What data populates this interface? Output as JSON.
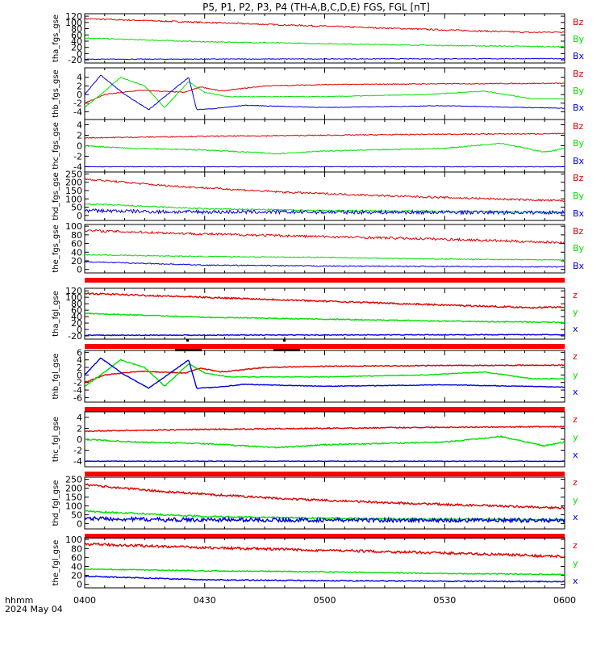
{
  "title": "P5, P1, P2, P3, P4 (TH-A,B,C,D,E) FGS, FGL [nT]",
  "x_axis": {
    "tick_labels": [
      "0400",
      "0430",
      "0500",
      "0530",
      "0600"
    ],
    "corner_label": "hhmm",
    "date_label": "2024 May 04"
  },
  "colors": {
    "z": "#e00000",
    "y": "#00e000",
    "x": "#0000e0",
    "bar": "#ff0000",
    "axis": "#000000"
  },
  "chart_data": [
    {
      "type": "line",
      "ylabel": "tha_fgs_gse",
      "yticks": [
        -20,
        0,
        20,
        40,
        60,
        80,
        100,
        120
      ],
      "ylim": [
        -30,
        128
      ],
      "bar_below": false,
      "series": [
        {
          "name": "Bz",
          "color": "#e00000",
          "noise": 0.6,
          "x": [
            0,
            30,
            60,
            90,
            112,
            120
          ],
          "values": [
            112,
            100,
            88,
            76,
            68,
            70
          ]
        },
        {
          "name": "By",
          "color": "#00e000",
          "noise": 0.4,
          "x": [
            0,
            30,
            60,
            90,
            120
          ],
          "values": [
            50,
            38,
            32,
            26,
            22
          ]
        },
        {
          "name": "Bx",
          "color": "#0000e0",
          "noise": 0.3,
          "x": [
            0,
            60,
            120
          ],
          "values": [
            -18,
            -17,
            -16
          ]
        }
      ]
    },
    {
      "type": "line",
      "ylabel": "thb_fgs_gse",
      "yticks": [
        -4,
        -2,
        0,
        2,
        4
      ],
      "ylim": [
        -5.8,
        6.2
      ],
      "bar_below": false,
      "series": [
        {
          "name": "Bz",
          "color": "#e00000",
          "noise": 0.35,
          "x": [
            0,
            5,
            14,
            25,
            29,
            34,
            45,
            60,
            90,
            120
          ],
          "values": [
            -2,
            0,
            1,
            0.5,
            1.8,
            0.8,
            2,
            2.3,
            2.5,
            2.6
          ]
        },
        {
          "name": "By",
          "color": "#00e000",
          "noise": 0.3,
          "x": [
            0,
            4,
            9,
            15,
            20,
            26,
            30,
            36,
            50,
            60,
            85,
            100,
            112,
            120
          ],
          "values": [
            -3,
            0,
            4,
            2,
            -3,
            3,
            0.5,
            -0.5,
            -0.5,
            -0.5,
            0,
            0.8,
            -1,
            -1
          ]
        },
        {
          "name": "Bx",
          "color": "#0000e0",
          "noise": 0.25,
          "x": [
            0,
            4,
            10,
            16,
            22,
            26,
            28,
            32,
            40,
            60,
            90,
            120
          ],
          "values": [
            0,
            4.5,
            0,
            -3.5,
            1,
            4,
            -3.5,
            -3.3,
            -2.5,
            -3,
            -2.6,
            -3.2
          ]
        }
      ]
    },
    {
      "type": "line",
      "ylabel": "thc_fgs_gse",
      "yticks": [
        -4,
        -2,
        0,
        2,
        4
      ],
      "ylim": [
        -5.0,
        5.0
      ],
      "bar_below": false,
      "series": [
        {
          "name": "Bz",
          "color": "#e00000",
          "noise": 0.4,
          "x": [
            0,
            30,
            60,
            90,
            120
          ],
          "values": [
            1.5,
            1.8,
            2,
            2.2,
            2.3
          ]
        },
        {
          "name": "By",
          "color": "#00e000",
          "noise": 0.45,
          "x": [
            0,
            12,
            30,
            48,
            60,
            90,
            104,
            115,
            120
          ],
          "values": [
            0,
            -0.5,
            -0.8,
            -1.5,
            -1,
            -0.5,
            0.5,
            -1.2,
            -0.5
          ]
        },
        {
          "name": "Bx",
          "color": "#0000e0",
          "noise": 0.2,
          "x": [
            0,
            60,
            120
          ],
          "values": [
            -4,
            -4,
            -4
          ]
        }
      ]
    },
    {
      "type": "line",
      "ylabel": "thd_fgs_gse",
      "yticks": [
        0,
        50,
        100,
        150,
        200,
        250
      ],
      "ylim": [
        -30,
        262
      ],
      "bar_below": false,
      "series": [
        {
          "name": "Bz",
          "color": "#e00000",
          "noise": 0.8,
          "x": [
            0,
            20,
            50,
            80,
            120
          ],
          "values": [
            220,
            180,
            140,
            115,
            88
          ]
        },
        {
          "name": "By",
          "color": "#00e000",
          "noise": 0.6,
          "x": [
            0,
            30,
            60,
            120
          ],
          "values": [
            70,
            40,
            30,
            20
          ]
        },
        {
          "name": "Bx",
          "color": "#0000e0",
          "noise": 1.5,
          "x": [
            0,
            20,
            60,
            120
          ],
          "values": [
            30,
            22,
            20,
            18
          ]
        }
      ]
    },
    {
      "type": "line",
      "ylabel": "the_fgs_gse",
      "yticks": [
        0,
        20,
        40,
        60,
        80,
        100
      ],
      "ylim": [
        -8,
        104
      ],
      "bar_below": true,
      "series": [
        {
          "name": "Bz",
          "color": "#e00000",
          "noise": 1.0,
          "x": [
            0,
            30,
            60,
            90,
            120
          ],
          "values": [
            90,
            82,
            76,
            70,
            62
          ]
        },
        {
          "name": "By",
          "color": "#00e000",
          "noise": 0.4,
          "x": [
            0,
            30,
            60,
            90,
            120
          ],
          "values": [
            34,
            30,
            28,
            24,
            22
          ]
        },
        {
          "name": "Bx",
          "color": "#0000e0",
          "noise": 0.4,
          "x": [
            0,
            30,
            60,
            120
          ],
          "values": [
            18,
            10,
            8,
            6
          ]
        }
      ]
    },
    {
      "type": "line",
      "ylabel": "tha_fgl_gse",
      "yticks": [
        -20,
        0,
        20,
        40,
        60,
        80,
        100,
        120
      ],
      "ylim": [
        -30,
        128
      ],
      "bar_below": true,
      "series": [
        {
          "name": "z",
          "color": "#e00000",
          "noise": 0.6,
          "x": [
            0,
            30,
            60,
            90,
            112,
            120
          ],
          "values": [
            112,
            100,
            88,
            76,
            68,
            70
          ]
        },
        {
          "name": "y",
          "color": "#00e000",
          "noise": 0.4,
          "x": [
            0,
            30,
            60,
            90,
            120
          ],
          "values": [
            50,
            38,
            32,
            26,
            22
          ]
        },
        {
          "name": "x",
          "color": "#0000e0",
          "noise": 0.3,
          "x": [
            0,
            60,
            120
          ],
          "values": [
            -18,
            -17,
            -16
          ]
        }
      ]
    },
    {
      "type": "line",
      "ylabel": "thb_fgl_gse",
      "yticks": [
        -6,
        -4,
        -2,
        0,
        2,
        4,
        6
      ],
      "ylim": [
        -7.2,
        6.5
      ],
      "bar_below": true,
      "series": [
        {
          "name": "z",
          "color": "#e00000",
          "noise": 0.35,
          "x": [
            0,
            5,
            14,
            25,
            29,
            34,
            45,
            60,
            90,
            120
          ],
          "values": [
            -2,
            0,
            1,
            0.5,
            1.8,
            0.8,
            2,
            2.3,
            2.5,
            2.6
          ]
        },
        {
          "name": "y",
          "color": "#00e000",
          "noise": 0.3,
          "x": [
            0,
            4,
            9,
            15,
            20,
            26,
            30,
            36,
            50,
            60,
            85,
            100,
            112,
            120
          ],
          "values": [
            -3,
            0,
            4,
            2,
            -3,
            3,
            0.5,
            -0.5,
            -0.5,
            -0.5,
            0,
            0.8,
            -1,
            -1
          ]
        },
        {
          "name": "x",
          "color": "#0000e0",
          "noise": 0.25,
          "x": [
            0,
            4,
            10,
            16,
            22,
            26,
            28,
            32,
            40,
            60,
            90,
            120
          ],
          "values": [
            0,
            4.5,
            0,
            -3.5,
            1,
            4,
            -3.5,
            -3.3,
            -2.5,
            -3,
            -2.6,
            -3.2
          ]
        }
      ]
    },
    {
      "type": "line",
      "ylabel": "thc_fgl_gse",
      "yticks": [
        -4,
        -2,
        0,
        2,
        4
      ],
      "ylim": [
        -5.0,
        5.0
      ],
      "bar_below": true,
      "series": [
        {
          "name": "z",
          "color": "#e00000",
          "noise": 0.4,
          "x": [
            0,
            30,
            60,
            90,
            120
          ],
          "values": [
            1.5,
            1.8,
            2,
            2.2,
            2.3
          ]
        },
        {
          "name": "y",
          "color": "#00e000",
          "noise": 0.45,
          "x": [
            0,
            12,
            30,
            48,
            60,
            90,
            104,
            115,
            120
          ],
          "values": [
            0,
            -0.5,
            -0.8,
            -1.5,
            -1,
            -0.5,
            0.5,
            -1.2,
            -0.5
          ]
        },
        {
          "name": "x",
          "color": "#0000e0",
          "noise": 0.2,
          "x": [
            0,
            60,
            120
          ],
          "values": [
            -4,
            -4,
            -4
          ]
        }
      ]
    },
    {
      "type": "line",
      "ylabel": "thd_fgl_gse",
      "yticks": [
        0,
        50,
        100,
        150,
        200,
        250
      ],
      "ylim": [
        -30,
        262
      ],
      "bar_below": true,
      "series": [
        {
          "name": "z",
          "color": "#e00000",
          "noise": 0.8,
          "x": [
            0,
            20,
            50,
            80,
            120
          ],
          "values": [
            220,
            180,
            140,
            115,
            88
          ]
        },
        {
          "name": "y",
          "color": "#00e000",
          "noise": 0.6,
          "x": [
            0,
            30,
            60,
            120
          ],
          "values": [
            70,
            40,
            30,
            20
          ]
        },
        {
          "name": "x",
          "color": "#0000e0",
          "noise": 1.5,
          "x": [
            0,
            20,
            60,
            120
          ],
          "values": [
            30,
            22,
            20,
            18
          ]
        }
      ]
    },
    {
      "type": "line",
      "ylabel": "the_fgl_gse",
      "yticks": [
        0,
        20,
        40,
        60,
        80,
        100
      ],
      "ylim": [
        -8,
        104
      ],
      "bar_below": false,
      "series": [
        {
          "name": "z",
          "color": "#e00000",
          "noise": 1.0,
          "x": [
            0,
            30,
            60,
            90,
            120
          ],
          "values": [
            90,
            82,
            76,
            70,
            62
          ]
        },
        {
          "name": "y",
          "color": "#00e000",
          "noise": 0.4,
          "x": [
            0,
            30,
            60,
            90,
            120
          ],
          "values": [
            34,
            30,
            28,
            24,
            22
          ]
        },
        {
          "name": "x",
          "color": "#0000e0",
          "noise": 0.4,
          "x": [
            0,
            30,
            60,
            120
          ],
          "values": [
            18,
            10,
            8,
            6
          ]
        }
      ]
    }
  ]
}
